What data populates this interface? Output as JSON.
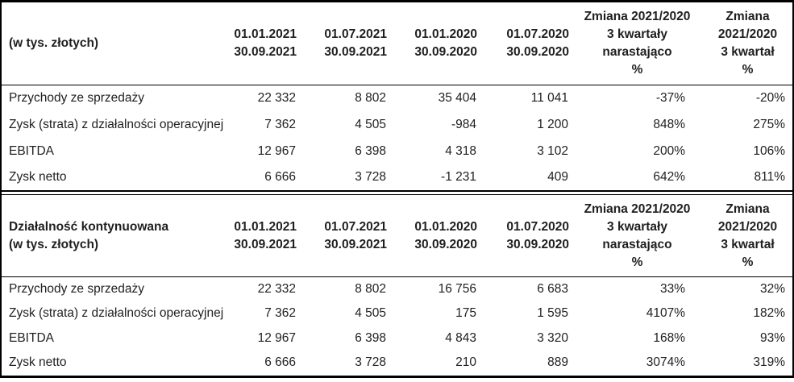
{
  "page": {
    "background_color": "#ffffff",
    "text_color": "#1f1f1f",
    "border_color": "#000000"
  },
  "tables": [
    {
      "id": "summary",
      "header": {
        "label_lines": [
          "(w tys. złotych)",
          ""
        ],
        "columns": [
          {
            "lines": [
              "01.01.2021",
              "30.09.2021"
            ]
          },
          {
            "lines": [
              "01.07.2021",
              "30.09.2021"
            ]
          },
          {
            "lines": [
              "01.01.2020",
              "30.09.2020"
            ]
          },
          {
            "lines": [
              "01.07.2020",
              "30.09.2020"
            ]
          },
          {
            "lines": [
              "Zmiana 2021/2020",
              "3 kwartały",
              "narastająco",
              "%"
            ]
          },
          {
            "lines": [
              "Zmiana",
              "2021/2020",
              "3 kwartał",
              "%"
            ]
          }
        ]
      },
      "rows": [
        {
          "label": "Przychody ze sprzedaży",
          "values": [
            "22 332",
            "8 802",
            "35 404",
            "11 041",
            "-37%",
            "-20%"
          ]
        },
        {
          "label": "Zysk (strata) z działalności operacyjnej",
          "values": [
            "7 362",
            "4 505",
            "-984",
            "1 200",
            "848%",
            "275%"
          ]
        },
        {
          "label": "EBITDA",
          "values": [
            "12 967",
            "6 398",
            "4 318",
            "3 102",
            "200%",
            "106%"
          ]
        },
        {
          "label": "Zysk netto",
          "values": [
            "6 666",
            "3 728",
            "-1 231",
            "409",
            "642%",
            "811%"
          ]
        }
      ]
    },
    {
      "id": "continued-operations",
      "header": {
        "label_lines": [
          "Działalność kontynuowana",
          "(w tys. złotych)"
        ],
        "columns": [
          {
            "lines": [
              "01.01.2021",
              "30.09.2021"
            ]
          },
          {
            "lines": [
              "01.07.2021",
              "30.09.2021"
            ]
          },
          {
            "lines": [
              "01.01.2020",
              "30.09.2020"
            ]
          },
          {
            "lines": [
              "01.07.2020",
              "30.09.2020"
            ]
          },
          {
            "lines": [
              "Zmiana 2021/2020",
              "3 kwartały",
              "narastająco",
              "%"
            ]
          },
          {
            "lines": [
              "Zmiana",
              "2021/2020",
              "3 kwartał",
              "%"
            ]
          }
        ]
      },
      "rows": [
        {
          "label": "Przychody ze sprzedaży",
          "values": [
            "22 332",
            "8 802",
            "16 756",
            "6 683",
            "33%",
            "32%"
          ]
        },
        {
          "label": "Zysk (strata) z działalności operacyjnej",
          "values": [
            "7 362",
            "4 505",
            "175",
            "1 595",
            "4107%",
            "182%"
          ]
        },
        {
          "label": "EBITDA",
          "values": [
            "12 967",
            "6 398",
            "4 843",
            "3 320",
            "168%",
            "93%"
          ]
        },
        {
          "label": "Zysk netto",
          "values": [
            "6 666",
            "3 728",
            "210",
            "889",
            "3074%",
            "319%"
          ]
        }
      ]
    }
  ]
}
